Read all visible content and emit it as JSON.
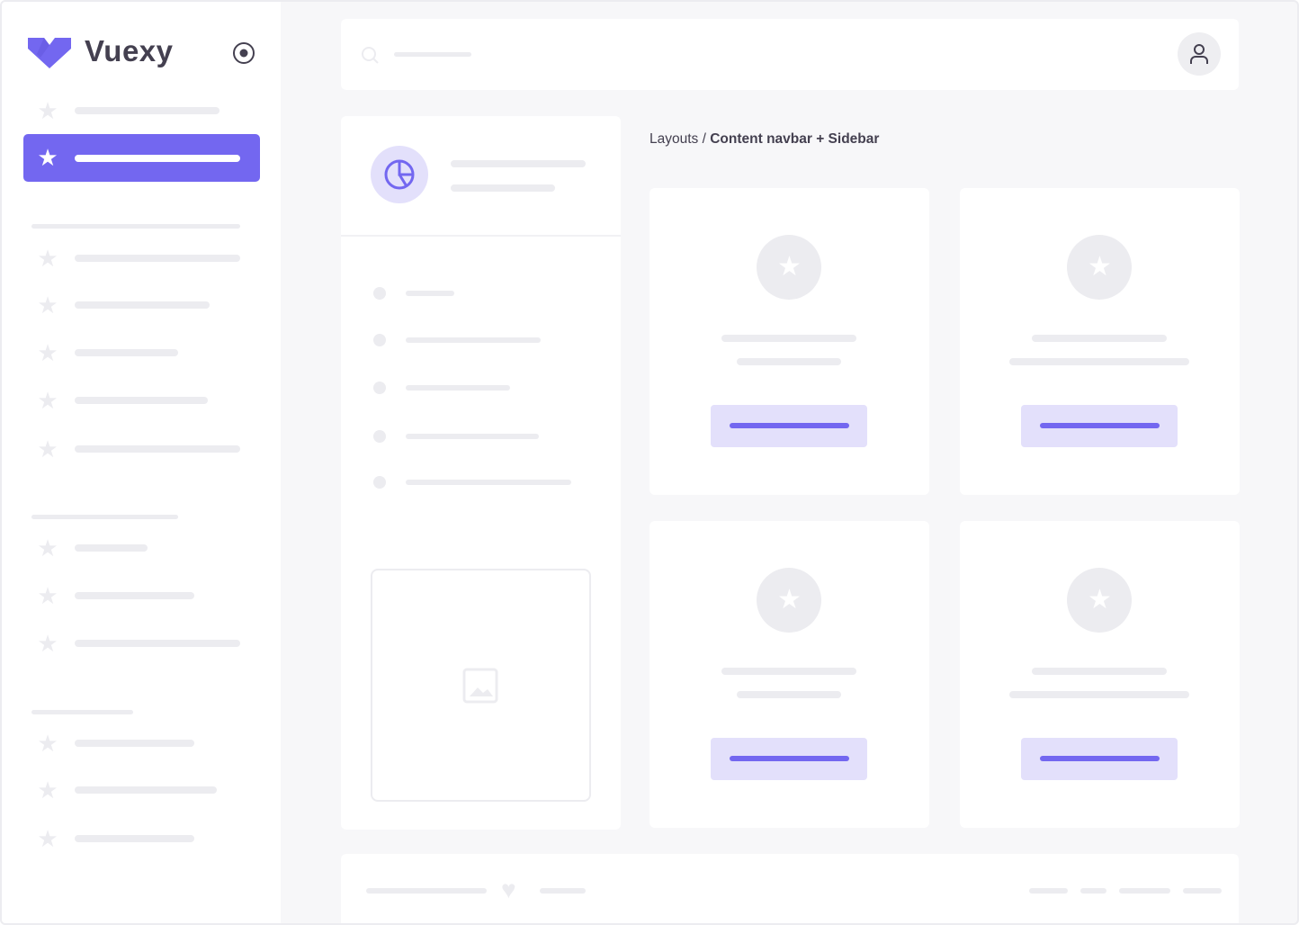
{
  "brand": {
    "name": "Vuexy",
    "color": "#7367f0"
  },
  "breadcrumb": {
    "parent": "Layouts",
    "separator": " / ",
    "current": "Content navbar + Sidebar"
  },
  "colors": {
    "accent": "#7367f0",
    "accent_light": "#e3e0fb",
    "placeholder": "#ececf0",
    "background": "#f7f7f9"
  },
  "icons": {
    "logo": "vuexy-logo",
    "pin": "radio-target-icon",
    "nav": "star-icon",
    "search": "search-icon",
    "user": "user-icon",
    "panel": "pie-chart-icon",
    "image": "image-icon",
    "footer": "heart-icon"
  }
}
